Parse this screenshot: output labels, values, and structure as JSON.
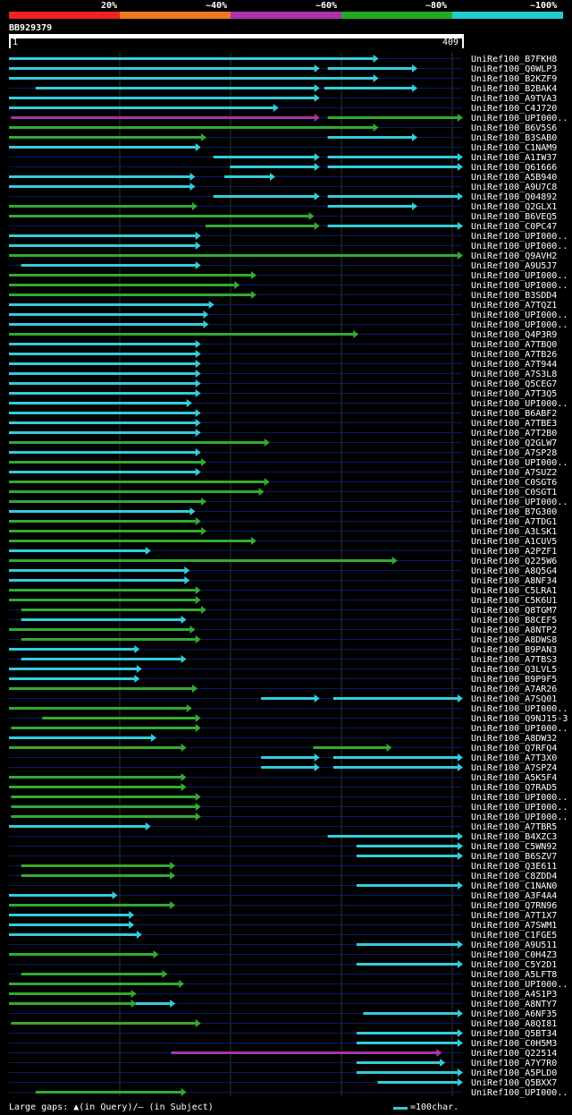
{
  "legend": [
    {
      "label": "20%",
      "color": "#ee2222"
    },
    {
      "label": "~40%",
      "color": "#ee7722"
    },
    {
      "label": "~60%",
      "color": "#aa33aa"
    },
    {
      "label": "~80%",
      "color": "#22aa22"
    },
    {
      "label": "~100%",
      "color": "#22cccc"
    }
  ],
  "query": {
    "name": "BB929379",
    "start": "1",
    "end": "409",
    "length": 409
  },
  "colors": {
    "c": "#33ccdd",
    "g": "#33aa33",
    "m": "#aa33aa",
    "rowline": "#0a1a66",
    "grid": "#2a3a2a",
    "label": "#ffffff",
    "background": "#000000"
  },
  "hits": [
    {
      "name": "UniRef100_B7FKH8",
      "segs": [
        [
          "c",
          1,
          333
        ]
      ]
    },
    {
      "name": "UniRef100_Q0WLP3",
      "segs": [
        [
          "c",
          1,
          280
        ],
        [
          "c",
          288,
          368
        ]
      ]
    },
    {
      "name": "UniRef100_B2KZF9",
      "segs": [
        [
          "c",
          1,
          333
        ]
      ]
    },
    {
      "name": "UniRef100_B2BAK4",
      "segs": [
        [
          "c",
          25,
          280
        ],
        [
          "c",
          285,
          368
        ]
      ]
    },
    {
      "name": "UniRef100_A9TVA3",
      "segs": [
        [
          "c",
          1,
          280
        ]
      ]
    },
    {
      "name": "UniRef100_C4J720",
      "segs": [
        [
          "c",
          1,
          243
        ]
      ]
    },
    {
      "name": "UniRef100_UPI000..",
      "segs": [
        [
          "m",
          3,
          280
        ],
        [
          "g",
          288,
          409
        ]
      ]
    },
    {
      "name": "UniRef100_B6V5S6",
      "segs": [
        [
          "g",
          1,
          333
        ]
      ]
    },
    {
      "name": "UniRef100_B3SAB0",
      "segs": [
        [
          "g",
          1,
          178
        ],
        [
          "c",
          288,
          368
        ]
      ]
    },
    {
      "name": "UniRef100_C1NAM9",
      "segs": [
        [
          "c",
          1,
          173
        ]
      ]
    },
    {
      "name": "UniRef100_A1IW37",
      "segs": [
        [
          "c",
          185,
          280
        ],
        [
          "c",
          288,
          409
        ]
      ]
    },
    {
      "name": "UniRef100_Q61666",
      "segs": [
        [
          "c",
          200,
          280
        ],
        [
          "c",
          288,
          409
        ]
      ]
    },
    {
      "name": "UniRef100_A5B940",
      "segs": [
        [
          "c",
          1,
          168
        ],
        [
          "c",
          195,
          240
        ]
      ]
    },
    {
      "name": "UniRef100_A9U7C8",
      "segs": [
        [
          "c",
          1,
          168
        ]
      ]
    },
    {
      "name": "UniRef100_Q04892",
      "segs": [
        [
          "c",
          185,
          280
        ],
        [
          "c",
          288,
          409
        ]
      ]
    },
    {
      "name": "UniRef100_Q2GLX1",
      "segs": [
        [
          "g",
          1,
          170
        ],
        [
          "c",
          288,
          368
        ]
      ]
    },
    {
      "name": "UniRef100_B6VEQ5",
      "segs": [
        [
          "g",
          1,
          275
        ]
      ]
    },
    {
      "name": "UniRef100_C0PC47",
      "segs": [
        [
          "g",
          178,
          280
        ],
        [
          "c",
          288,
          409
        ]
      ]
    },
    {
      "name": "UniRef100_UPI000..",
      "segs": [
        [
          "c",
          1,
          173
        ]
      ]
    },
    {
      "name": "UniRef100_UPI000..",
      "segs": [
        [
          "c",
          1,
          173
        ]
      ]
    },
    {
      "name": "UniRef100_Q9AVH2",
      "segs": [
        [
          "g",
          1,
          409
        ]
      ]
    },
    {
      "name": "UniRef100_A9U5J7",
      "segs": [
        [
          "c",
          12,
          173
        ]
      ]
    },
    {
      "name": "UniRef100_UPI000..",
      "segs": [
        [
          "g",
          1,
          223
        ]
      ]
    },
    {
      "name": "UniRef100_UPI000..",
      "segs": [
        [
          "g",
          1,
          208
        ]
      ]
    },
    {
      "name": "UniRef100_B3SDD4",
      "segs": [
        [
          "g",
          1,
          223
        ]
      ]
    },
    {
      "name": "UniRef100_A7TQZ1",
      "segs": [
        [
          "c",
          1,
          185
        ]
      ]
    },
    {
      "name": "UniRef100_UPI000..",
      "segs": [
        [
          "c",
          1,
          180
        ]
      ]
    },
    {
      "name": "UniRef100_UPI000..",
      "segs": [
        [
          "c",
          1,
          180
        ]
      ]
    },
    {
      "name": "UniRef100_Q4P3R9",
      "segs": [
        [
          "g",
          1,
          315
        ]
      ]
    },
    {
      "name": "UniRef100_A7TBQ0",
      "segs": [
        [
          "c",
          1,
          173
        ]
      ]
    },
    {
      "name": "UniRef100_A7TB26",
      "segs": [
        [
          "c",
          1,
          173
        ]
      ]
    },
    {
      "name": "UniRef100_A7T944",
      "segs": [
        [
          "c",
          1,
          173
        ]
      ]
    },
    {
      "name": "UniRef100_A7S3L8",
      "segs": [
        [
          "c",
          1,
          173
        ]
      ]
    },
    {
      "name": "UniRef100_Q5CEG7",
      "segs": [
        [
          "c",
          1,
          173
        ]
      ]
    },
    {
      "name": "UniRef100_A7T3Q5",
      "segs": [
        [
          "c",
          1,
          173
        ]
      ]
    },
    {
      "name": "UniRef100_UPI000..",
      "segs": [
        [
          "c",
          1,
          165
        ]
      ]
    },
    {
      "name": "UniRef100_B6ABF2",
      "segs": [
        [
          "c",
          1,
          173
        ]
      ]
    },
    {
      "name": "UniRef100_A7TBE3",
      "segs": [
        [
          "c",
          1,
          173
        ]
      ]
    },
    {
      "name": "UniRef100_A7T2B0",
      "segs": [
        [
          "c",
          1,
          173
        ]
      ]
    },
    {
      "name": "UniRef100_Q2GLW7",
      "segs": [
        [
          "g",
          1,
          235
        ]
      ]
    },
    {
      "name": "UniRef100_A7SP28",
      "segs": [
        [
          "c",
          1,
          173
        ]
      ]
    },
    {
      "name": "UniRef100_UPI000..",
      "segs": [
        [
          "g",
          1,
          178
        ]
      ]
    },
    {
      "name": "UniRef100_A7SUZ2",
      "segs": [
        [
          "c",
          1,
          173
        ]
      ]
    },
    {
      "name": "UniRef100_C0SGT6",
      "segs": [
        [
          "g",
          1,
          235
        ]
      ]
    },
    {
      "name": "UniRef100_C0SGT1",
      "segs": [
        [
          "g",
          1,
          230
        ]
      ]
    },
    {
      "name": "UniRef100_UPI000..",
      "segs": [
        [
          "g",
          1,
          178
        ]
      ]
    },
    {
      "name": "UniRef100_B7G300",
      "segs": [
        [
          "c",
          1,
          168
        ]
      ]
    },
    {
      "name": "UniRef100_A7TDG1",
      "segs": [
        [
          "g",
          1,
          173
        ]
      ]
    },
    {
      "name": "UniRef100_A3LSK1",
      "segs": [
        [
          "g",
          1,
          178
        ]
      ]
    },
    {
      "name": "UniRef100_A1CUV5",
      "segs": [
        [
          "g",
          1,
          223
        ]
      ]
    },
    {
      "name": "UniRef100_A2PZF1",
      "segs": [
        [
          "c",
          1,
          128
        ]
      ]
    },
    {
      "name": "UniRef100_Q225W6",
      "segs": [
        [
          "g",
          1,
          350
        ]
      ]
    },
    {
      "name": "UniRef100_A8Q5G4",
      "segs": [
        [
          "c",
          1,
          163
        ]
      ]
    },
    {
      "name": "UniRef100_A8NF34",
      "segs": [
        [
          "c",
          1,
          163
        ]
      ]
    },
    {
      "name": "UniRef100_C5LRA1",
      "segs": [
        [
          "g",
          1,
          173
        ]
      ]
    },
    {
      "name": "UniRef100_C5K6U1",
      "segs": [
        [
          "g",
          1,
          173
        ]
      ]
    },
    {
      "name": "UniRef100_Q8TGM7",
      "segs": [
        [
          "g",
          12,
          178
        ]
      ]
    },
    {
      "name": "UniRef100_B8CEF5",
      "segs": [
        [
          "c",
          12,
          160
        ]
      ]
    },
    {
      "name": "UniRef100_A8NTP2",
      "segs": [
        [
          "g",
          1,
          168
        ]
      ]
    },
    {
      "name": "UniRef100_A8DWS8",
      "segs": [
        [
          "g",
          12,
          173
        ]
      ]
    },
    {
      "name": "UniRef100_B9PAN3",
      "segs": [
        [
          "c",
          1,
          118
        ]
      ]
    },
    {
      "name": "UniRef100_A7TBS3",
      "segs": [
        [
          "c",
          12,
          160
        ]
      ]
    },
    {
      "name": "UniRef100_Q3LVL5",
      "segs": [
        [
          "c",
          1,
          120
        ]
      ]
    },
    {
      "name": "UniRef100_B9P9F5",
      "segs": [
        [
          "c",
          1,
          118
        ]
      ]
    },
    {
      "name": "UniRef100_A7AR26",
      "segs": [
        [
          "g",
          1,
          170
        ]
      ]
    },
    {
      "name": "UniRef100_A7SQ01",
      "segs": [
        [
          "c",
          228,
          280
        ],
        [
          "c",
          293,
          409
        ]
      ]
    },
    {
      "name": "UniRef100_UPI000..",
      "segs": [
        [
          "g",
          1,
          165
        ]
      ]
    },
    {
      "name": "UniRef100_Q9NJ15-3",
      "segs": [
        [
          "g",
          31,
          173
        ]
      ]
    },
    {
      "name": "UniRef100_UPI000..",
      "segs": [
        [
          "g",
          3,
          173
        ]
      ]
    },
    {
      "name": "UniRef100_A8DW32",
      "segs": [
        [
          "c",
          1,
          133
        ]
      ]
    },
    {
      "name": "UniRef100_Q7RFQ4",
      "segs": [
        [
          "g",
          1,
          160
        ],
        [
          "g",
          275,
          345
        ]
      ]
    },
    {
      "name": "UniRef100_A7T3X0",
      "segs": [
        [
          "c",
          228,
          280
        ],
        [
          "c",
          293,
          409
        ]
      ]
    },
    {
      "name": "UniRef100_A7SPZ4",
      "segs": [
        [
          "c",
          228,
          280
        ],
        [
          "c",
          293,
          409
        ]
      ]
    },
    {
      "name": "UniRef100_A5K5F4",
      "segs": [
        [
          "g",
          1,
          160
        ]
      ]
    },
    {
      "name": "UniRef100_Q7RAD5",
      "segs": [
        [
          "g",
          1,
          160
        ]
      ]
    },
    {
      "name": "UniRef100_UPI000..",
      "segs": [
        [
          "g",
          3,
          173
        ]
      ]
    },
    {
      "name": "UniRef100_UPI000..",
      "segs": [
        [
          "g",
          3,
          173
        ]
      ]
    },
    {
      "name": "UniRef100_UPI000..",
      "segs": [
        [
          "g",
          3,
          173
        ]
      ]
    },
    {
      "name": "UniRef100_A7TBR5",
      "segs": [
        [
          "c",
          1,
          128
        ]
      ]
    },
    {
      "name": "UniRef100_B4XZC3",
      "segs": [
        [
          "c",
          288,
          409
        ]
      ]
    },
    {
      "name": "UniRef100_C5WN92",
      "segs": [
        [
          "c",
          314,
          409
        ]
      ]
    },
    {
      "name": "UniRef100_B6SZV7",
      "segs": [
        [
          "c",
          314,
          409
        ]
      ]
    },
    {
      "name": "UniRef100_Q3E611",
      "segs": [
        [
          "g",
          12,
          150
        ]
      ]
    },
    {
      "name": "UniRef100_C8ZDD4",
      "segs": [
        [
          "g",
          12,
          150
        ]
      ]
    },
    {
      "name": "UniRef100_C1NAN0",
      "segs": [
        [
          "c",
          314,
          409
        ]
      ]
    },
    {
      "name": "UniRef100_A3F4A4",
      "segs": [
        [
          "c",
          1,
          98
        ]
      ]
    },
    {
      "name": "UniRef100_Q7RN96",
      "segs": [
        [
          "g",
          1,
          150
        ]
      ]
    },
    {
      "name": "UniRef100_A7T1X7",
      "segs": [
        [
          "c",
          1,
          113
        ]
      ]
    },
    {
      "name": "UniRef100_A7SWM1",
      "segs": [
        [
          "c",
          1,
          113
        ]
      ]
    },
    {
      "name": "UniRef100_C1FGE5",
      "segs": [
        [
          "c",
          1,
          120
        ]
      ]
    },
    {
      "name": "UniRef100_A9U511",
      "segs": [
        [
          "c",
          314,
          409
        ]
      ]
    },
    {
      "name": "UniRef100_C0H4Z3",
      "segs": [
        [
          "g",
          1,
          135
        ]
      ]
    },
    {
      "name": "UniRef100_C5Y2D1",
      "segs": [
        [
          "c",
          314,
          409
        ]
      ]
    },
    {
      "name": "UniRef100_A5LFT8",
      "segs": [
        [
          "g",
          12,
          143
        ]
      ]
    },
    {
      "name": "UniRef100_UPI000..",
      "segs": [
        [
          "g",
          1,
          158
        ]
      ]
    },
    {
      "name": "UniRef100_A4S1P3",
      "segs": [
        [
          "g",
          1,
          115
        ]
      ]
    },
    {
      "name": "UniRef100_A8NTY7",
      "segs": [
        [
          "g",
          1,
          115
        ],
        [
          "c",
          115,
          150
        ]
      ]
    },
    {
      "name": "UniRef100_A6NF35",
      "segs": [
        [
          "c",
          320,
          409
        ]
      ]
    },
    {
      "name": "UniRef100_A8QI81",
      "segs": [
        [
          "g",
          3,
          173
        ]
      ]
    },
    {
      "name": "UniRef100_Q5BT34",
      "segs": [
        [
          "c",
          314,
          409
        ]
      ]
    },
    {
      "name": "UniRef100_C0H5M3",
      "segs": [
        [
          "c",
          314,
          409
        ]
      ]
    },
    {
      "name": "UniRef100_Q22514",
      "segs": [
        [
          "m",
          147,
          390
        ]
      ]
    },
    {
      "name": "UniRef100_A7Y7R0",
      "segs": [
        [
          "c",
          314,
          393
        ]
      ]
    },
    {
      "name": "UniRef100_A5PLD0",
      "segs": [
        [
          "c",
          314,
          409
        ]
      ]
    },
    {
      "name": "UniRef100_Q5BXX7",
      "segs": [
        [
          "c",
          333,
          409
        ]
      ]
    },
    {
      "name": "UniRef100_UPI000..",
      "segs": [
        [
          "g",
          25,
          160
        ]
      ]
    }
  ],
  "footer": {
    "gaps_text": "Large gaps: ▲(in Query)/– (in Subject)",
    "scale_text": "=100char."
  }
}
